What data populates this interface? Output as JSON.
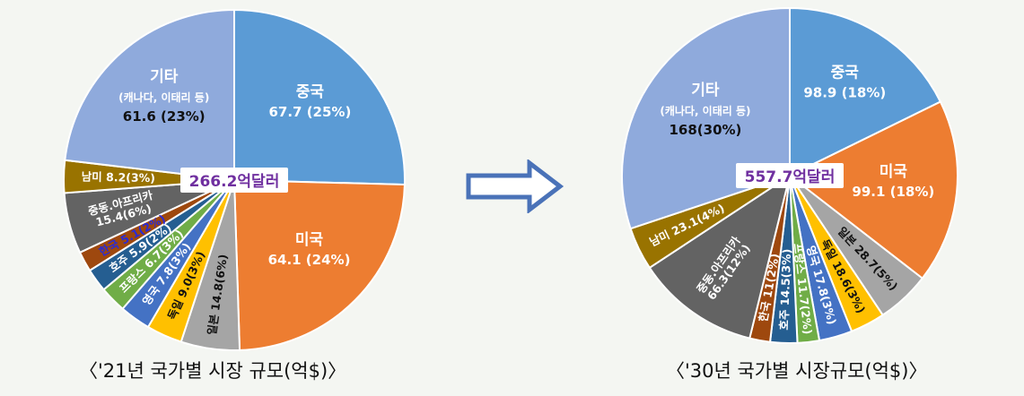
{
  "chart_data": [
    {
      "type": "pie",
      "caption": "〈'21년 국가별 시장 규모(억$)〉",
      "center_label": "266.2억달러",
      "slices": [
        {
          "name": "중국",
          "value": 67.7,
          "label_lines": [
            "중국",
            "67.7 (25%)"
          ],
          "color": "#5b9bd5"
        },
        {
          "name": "미국",
          "value": 64.1,
          "label_lines": [
            "미국",
            "64.1 (24%)"
          ],
          "color": "#ed7d31"
        },
        {
          "name": "일본",
          "value": 14.8,
          "label_lines": [
            "일본 14.8(6%)"
          ],
          "color": "#a5a5a5"
        },
        {
          "name": "독일",
          "value": 9.0,
          "label_lines": [
            "독일 9.0(3%)"
          ],
          "color": "#ffc000"
        },
        {
          "name": "영국",
          "value": 7.8,
          "label_lines": [
            "영국 7.8(3%)"
          ],
          "color": "#4472c4"
        },
        {
          "name": "프랑스",
          "value": 6.7,
          "label_lines": [
            "프랑스 6.7(3%)"
          ],
          "color": "#70ad47"
        },
        {
          "name": "호주",
          "value": 5.9,
          "label_lines": [
            "호주 5.9(2%)"
          ],
          "color": "#255e91"
        },
        {
          "name": "한국",
          "value": 5.1,
          "label_lines": [
            "한국 5.1(2%)"
          ],
          "color": "#9e480e"
        },
        {
          "name": "중동.아프리카",
          "value": 15.4,
          "label_lines": [
            "중동.아프리카",
            "15.4(6%)"
          ],
          "color": "#636363"
        },
        {
          "name": "남미",
          "value": 8.2,
          "label_lines": [
            "남미 8.2(3%)"
          ],
          "color": "#997300"
        },
        {
          "name": "기타",
          "value": 61.6,
          "label_lines": [
            "기타",
            "(캐나다, 이태리 등)",
            "61.6 (23%)"
          ],
          "color": "#8faadc"
        }
      ]
    },
    {
      "type": "pie",
      "caption": "〈'30년 국가별 시장규모(억$)〉",
      "center_label": "557.7억달러",
      "slices": [
        {
          "name": "중국",
          "value": 98.9,
          "label_lines": [
            "중국",
            "98.9 (18%)"
          ],
          "color": "#5b9bd5"
        },
        {
          "name": "미국",
          "value": 99.1,
          "label_lines": [
            "미국",
            "99.1 (18%)"
          ],
          "color": "#ed7d31"
        },
        {
          "name": "일본",
          "value": 28.7,
          "label_lines": [
            "일본 28.7(5%)"
          ],
          "color": "#a5a5a5"
        },
        {
          "name": "독일",
          "value": 18.6,
          "label_lines": [
            "독일 18.6(3%)"
          ],
          "color": "#ffc000"
        },
        {
          "name": "영국",
          "value": 17.8,
          "label_lines": [
            "영국 17.8(3%)"
          ],
          "color": "#4472c4"
        },
        {
          "name": "프랑스",
          "value": 11.7,
          "label_lines": [
            "프랑스 11.7(2%)"
          ],
          "color": "#70ad47"
        },
        {
          "name": "호주",
          "value": 14.5,
          "label_lines": [
            "호주 14.5(3%)"
          ],
          "color": "#255e91"
        },
        {
          "name": "한국",
          "value": 11.0,
          "label_lines": [
            "한국 11(2%)"
          ],
          "color": "#9e480e"
        },
        {
          "name": "중동.아프리카",
          "value": 66.3,
          "label_lines": [
            "중동.아프리카",
            "66.3(12%)"
          ],
          "color": "#636363"
        },
        {
          "name": "남미",
          "value": 23.1,
          "label_lines": [
            "남미 23.1(4%)"
          ],
          "color": "#997300"
        },
        {
          "name": "기타",
          "value": 168,
          "label_lines": [
            "기타",
            "(캐나다, 이태리 등)",
            "168(30%)"
          ],
          "color": "#8faadc"
        }
      ]
    }
  ]
}
